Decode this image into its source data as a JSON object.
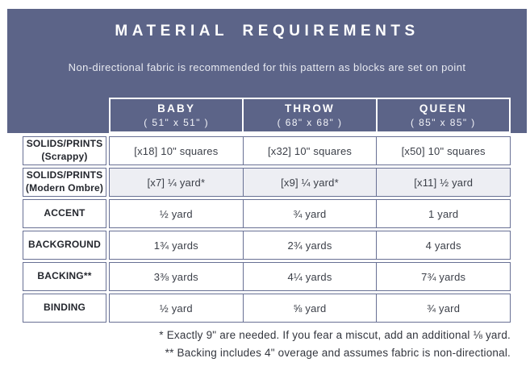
{
  "banner": {
    "title": "MATERIAL REQUIREMENTS",
    "subtitle": "Non-directional fabric is recommended for this pattern as blocks are set on point"
  },
  "table": {
    "columns": [
      {
        "name": "BABY",
        "size": "( 51\" x 51\" )"
      },
      {
        "name": "THROW",
        "size": "( 68\" x 68\" )"
      },
      {
        "name": "QUEEN",
        "size": "( 85\" x 85\" )"
      }
    ],
    "rows": [
      {
        "label": "SOLIDS/PRINTS",
        "sublabel": "(Scrappy)",
        "shaded": false,
        "values": [
          "[x18] 10\" squares",
          "[x32] 10\" squares",
          "[x50] 10\" squares"
        ]
      },
      {
        "label": "SOLIDS/PRINTS",
        "sublabel": "(Modern Ombre)",
        "shaded": true,
        "values": [
          "[x7] ¼ yard*",
          "[x9] ¼ yard*",
          "[x11] ½ yard"
        ]
      },
      {
        "label": "ACCENT",
        "sublabel": "",
        "shaded": false,
        "values": [
          "½ yard",
          "¾ yard",
          "1 yard"
        ]
      },
      {
        "label": "BACKGROUND",
        "sublabel": "",
        "shaded": false,
        "values": [
          "1¾ yards",
          "2¾ yards",
          "4 yards"
        ]
      },
      {
        "label": "BACKING**",
        "sublabel": "",
        "shaded": false,
        "values": [
          "3⅜ yards",
          "4¼ yards",
          "7¾ yards"
        ]
      },
      {
        "label": "BINDING",
        "sublabel": "",
        "shaded": false,
        "values": [
          "½ yard",
          "⅝ yard",
          "¾ yard"
        ]
      }
    ]
  },
  "footnotes": [
    "* Exactly 9\" are needed. If you fear a miscut, add an additional ⅛ yard.",
    "** Backing includes 4\" overage and assumes fabric is non-directional."
  ],
  "colors": {
    "banner_bg": "#5c6488",
    "table_border": "#687094",
    "shaded_row_bg": "#edeef3",
    "label_text": "#23262d",
    "value_text": "#3b3f48",
    "footnote_text": "#33363e"
  }
}
